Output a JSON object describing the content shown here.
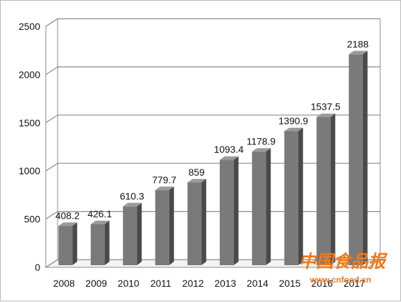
{
  "chart_data": {
    "type": "bar",
    "title": "",
    "xlabel": "",
    "ylabel": "",
    "categories": [
      "2008",
      "2009",
      "2010",
      "2011",
      "2012",
      "2013",
      "2014",
      "2015",
      "2016",
      "2017"
    ],
    "values": [
      408.2,
      426.1,
      610.3,
      779.7,
      859,
      1093.4,
      1178.9,
      1390.9,
      1537.5,
      2188
    ],
    "data_labels": [
      "408.2",
      "426.1",
      "610.3",
      "779.7",
      "859",
      "1093.4",
      "1178.9",
      "1390.9",
      "1537.5",
      "2188"
    ],
    "y_ticks": [
      0,
      500,
      1000,
      1500,
      2000,
      2500
    ],
    "ylim": [
      0,
      2500
    ],
    "grid": true,
    "legend": "none",
    "style": "3d-column",
    "colors": {
      "bar_front": "#7a7a7a",
      "bar_side": "#4a4a4a",
      "bar_top": "#9a9a9a",
      "grid": "#888888",
      "wall": "#ffffff"
    }
  },
  "watermark": {
    "text": "中国食品报",
    "url": "www.cnfood.cn",
    "color": "#f07a1a"
  }
}
